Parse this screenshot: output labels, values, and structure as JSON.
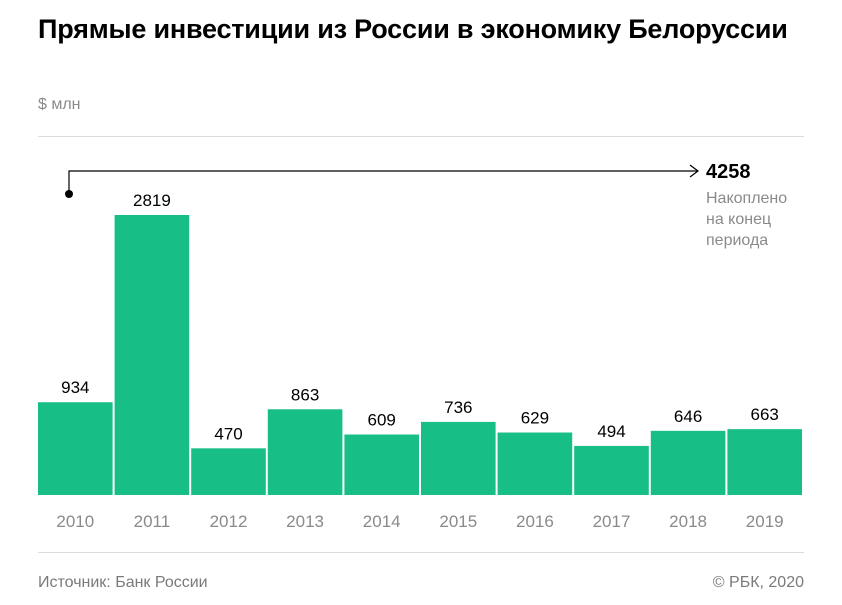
{
  "title": "Прямые инвестиции из России в экономику Белоруссии",
  "unit": "$ млн",
  "footer": {
    "source": "Источник: Банк России",
    "copyright": "© РБК, 2020"
  },
  "colors": {
    "bar": "#17bf86",
    "text": "#000000",
    "muted": "#8a8a8a"
  },
  "chart_data": {
    "type": "bar",
    "categories": [
      "2010",
      "2011",
      "2012",
      "2013",
      "2014",
      "2015",
      "2016",
      "2017",
      "2018",
      "2019"
    ],
    "values": [
      934,
      2819,
      470,
      863,
      609,
      736,
      629,
      494,
      646,
      663
    ],
    "ylabel": "$ млн",
    "ylim": [
      0,
      2819
    ],
    "grid": false,
    "annotation": {
      "value": "4258",
      "text": [
        "Накоплено",
        "на конец",
        "периода"
      ]
    }
  }
}
